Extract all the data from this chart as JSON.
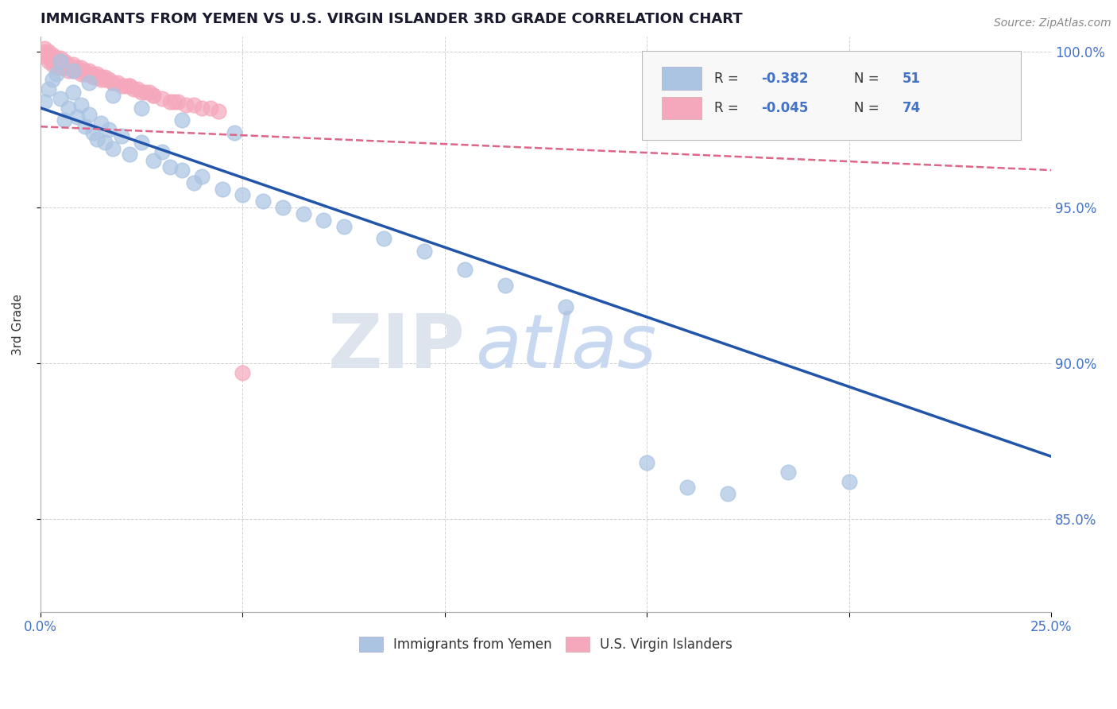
{
  "title": "IMMIGRANTS FROM YEMEN VS U.S. VIRGIN ISLANDER 3RD GRADE CORRELATION CHART",
  "source": "Source: ZipAtlas.com",
  "ylabel_label": "3rd Grade",
  "xlim": [
    0.0,
    0.25
  ],
  "ylim": [
    0.82,
    1.005
  ],
  "yticks": [
    0.85,
    0.9,
    0.95,
    1.0
  ],
  "ytick_labels": [
    "85.0%",
    "90.0%",
    "95.0%",
    "100.0%"
  ],
  "xtick_positions": [
    0.0,
    0.05,
    0.1,
    0.15,
    0.2,
    0.25
  ],
  "xtick_labels": [
    "0.0%",
    "",
    "",
    "",
    "",
    "25.0%"
  ],
  "blue_R": -0.382,
  "blue_N": 51,
  "pink_R": -0.045,
  "pink_N": 74,
  "blue_color": "#aac4e2",
  "pink_color": "#f5a8bc",
  "blue_line_color": "#2255aa",
  "pink_line_color": "#dd6688",
  "legend_blue_label": "Immigrants from Yemen",
  "legend_pink_label": "U.S. Virgin Islanders",
  "blue_scatter_x": [
    0.001,
    0.002,
    0.003,
    0.004,
    0.005,
    0.006,
    0.007,
    0.008,
    0.009,
    0.01,
    0.011,
    0.012,
    0.013,
    0.014,
    0.015,
    0.016,
    0.017,
    0.018,
    0.02,
    0.022,
    0.025,
    0.028,
    0.03,
    0.032,
    0.035,
    0.038,
    0.04,
    0.045,
    0.05,
    0.055,
    0.06,
    0.065,
    0.07,
    0.075,
    0.085,
    0.095,
    0.105,
    0.115,
    0.13,
    0.15,
    0.16,
    0.17,
    0.185,
    0.2,
    0.005,
    0.008,
    0.012,
    0.018,
    0.025,
    0.035,
    0.048
  ],
  "blue_scatter_y": [
    0.984,
    0.988,
    0.991,
    0.993,
    0.985,
    0.978,
    0.982,
    0.987,
    0.979,
    0.983,
    0.976,
    0.98,
    0.974,
    0.972,
    0.977,
    0.971,
    0.975,
    0.969,
    0.973,
    0.967,
    0.971,
    0.965,
    0.968,
    0.963,
    0.962,
    0.958,
    0.96,
    0.956,
    0.954,
    0.952,
    0.95,
    0.948,
    0.946,
    0.944,
    0.94,
    0.936,
    0.93,
    0.925,
    0.918,
    0.868,
    0.86,
    0.858,
    0.865,
    0.862,
    0.997,
    0.994,
    0.99,
    0.986,
    0.982,
    0.978,
    0.974
  ],
  "pink_scatter_x": [
    0.001,
    0.001,
    0.002,
    0.002,
    0.002,
    0.003,
    0.003,
    0.003,
    0.004,
    0.004,
    0.004,
    0.005,
    0.005,
    0.005,
    0.006,
    0.006,
    0.006,
    0.007,
    0.007,
    0.007,
    0.008,
    0.008,
    0.008,
    0.009,
    0.009,
    0.01,
    0.01,
    0.01,
    0.011,
    0.011,
    0.012,
    0.012,
    0.013,
    0.013,
    0.014,
    0.014,
    0.015,
    0.015,
    0.016,
    0.016,
    0.017,
    0.018,
    0.019,
    0.02,
    0.021,
    0.022,
    0.023,
    0.024,
    0.025,
    0.026,
    0.027,
    0.028,
    0.03,
    0.032,
    0.034,
    0.036,
    0.038,
    0.04,
    0.042,
    0.044,
    0.001,
    0.002,
    0.003,
    0.004,
    0.005,
    0.006,
    0.018,
    0.022,
    0.01,
    0.014,
    0.028,
    0.033,
    0.008,
    0.05
  ],
  "pink_scatter_y": [
    1.001,
    0.999,
    1.0,
    0.998,
    0.997,
    0.999,
    0.997,
    0.996,
    0.998,
    0.997,
    0.996,
    0.998,
    0.997,
    0.995,
    0.997,
    0.996,
    0.995,
    0.996,
    0.995,
    0.994,
    0.996,
    0.995,
    0.994,
    0.995,
    0.994,
    0.995,
    0.994,
    0.993,
    0.994,
    0.993,
    0.994,
    0.993,
    0.993,
    0.992,
    0.993,
    0.992,
    0.992,
    0.991,
    0.992,
    0.991,
    0.991,
    0.99,
    0.99,
    0.989,
    0.989,
    0.989,
    0.988,
    0.988,
    0.987,
    0.987,
    0.987,
    0.986,
    0.985,
    0.984,
    0.984,
    0.983,
    0.983,
    0.982,
    0.982,
    0.981,
    1.0,
    0.999,
    0.998,
    0.997,
    0.996,
    0.995,
    0.99,
    0.989,
    0.994,
    0.992,
    0.986,
    0.984,
    0.995,
    0.897
  ],
  "blue_trendline_x": [
    0.0,
    0.25
  ],
  "blue_trendline_y": [
    0.982,
    0.87
  ],
  "pink_trendline_x": [
    0.0,
    0.25
  ],
  "pink_trendline_y": [
    0.976,
    0.962
  ]
}
